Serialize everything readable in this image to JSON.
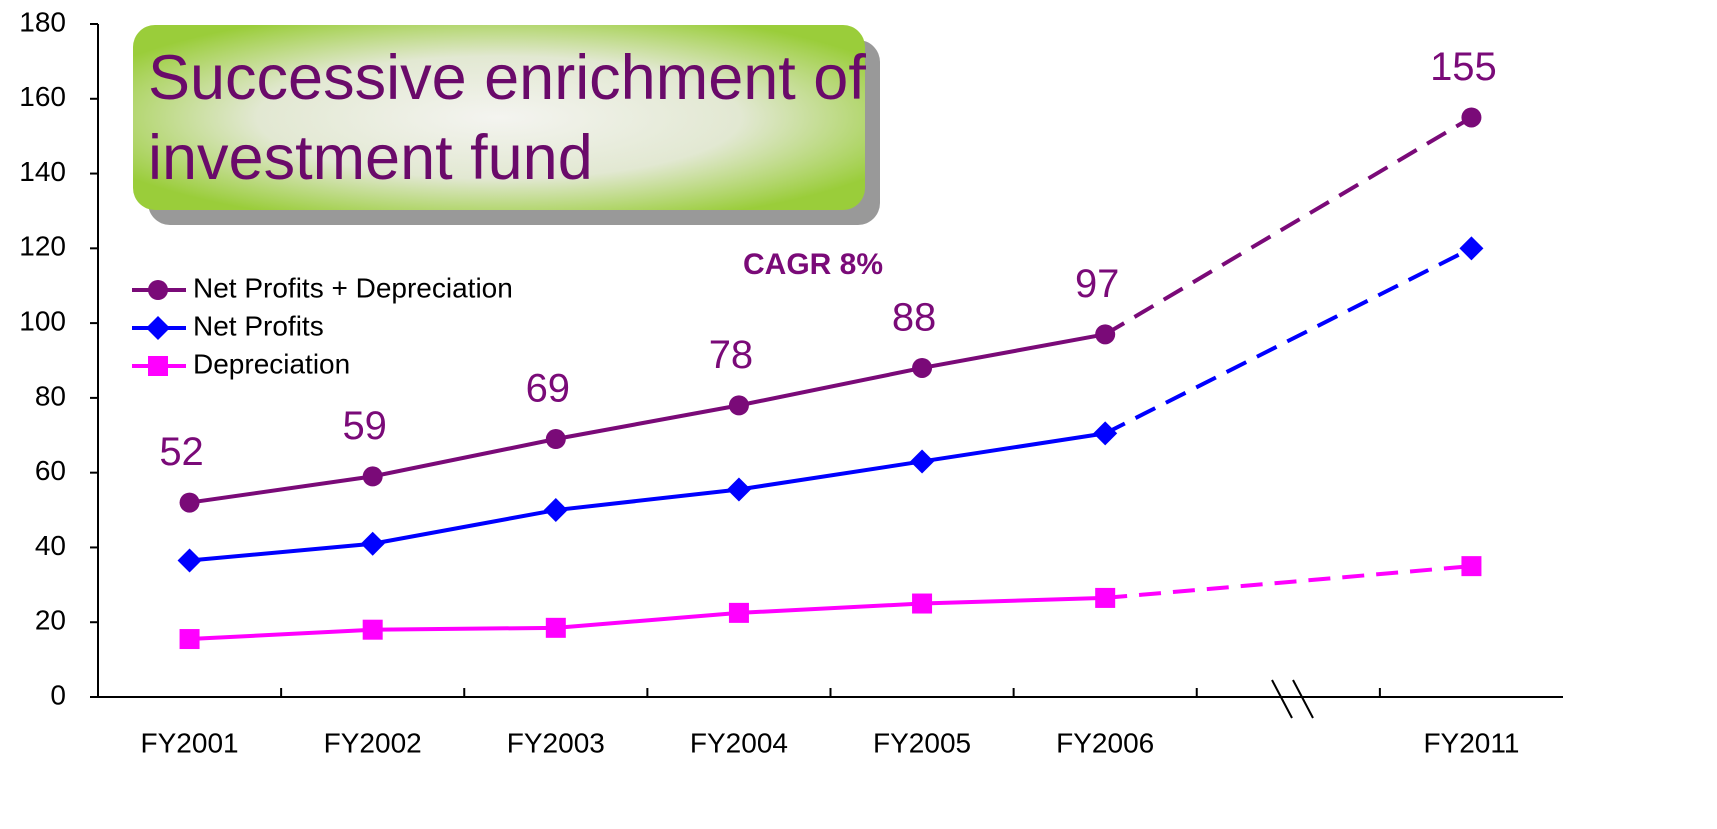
{
  "chart_data": {
    "type": "line",
    "title": "Successive enrichment of investment fund",
    "annotation": "CAGR 8%",
    "categories": [
      "FY2001",
      "FY2002",
      "FY2003",
      "FY2004",
      "FY2005",
      "FY2006",
      null,
      "FY2011"
    ],
    "series": [
      {
        "name": "Net Profits + Depreciation",
        "color": "#7a0a78",
        "marker": "circle",
        "labels": true,
        "values": [
          52,
          59,
          69,
          78,
          88,
          97,
          null,
          155
        ]
      },
      {
        "name": "Net Profits",
        "color": "#0000ff",
        "marker": "diamond",
        "labels": false,
        "values": [
          36.5,
          41,
          50,
          55.5,
          63,
          70.5,
          null,
          120
        ]
      },
      {
        "name": "Depreciation",
        "color": "#ff00ff",
        "marker": "square",
        "labels": false,
        "values": [
          15.5,
          18,
          18.5,
          22.5,
          25,
          26.5,
          null,
          35
        ]
      }
    ],
    "ylim": [
      0,
      180
    ],
    "yticks": [
      0,
      20,
      40,
      60,
      80,
      100,
      120,
      140,
      160,
      180
    ],
    "grid": false,
    "legend": "upper left"
  }
}
